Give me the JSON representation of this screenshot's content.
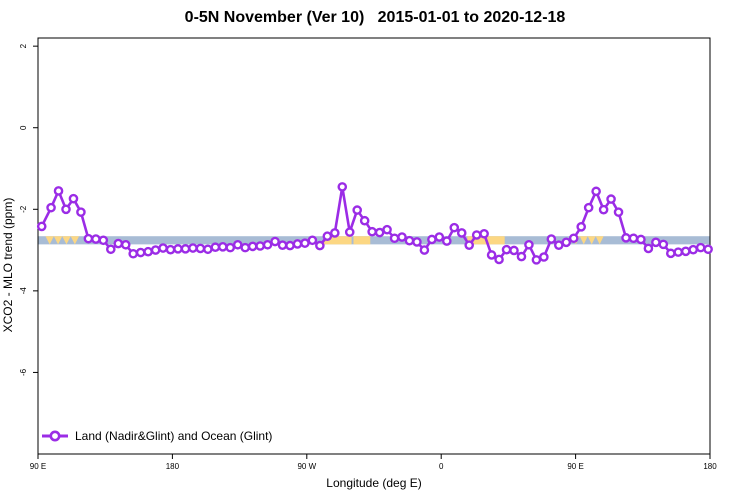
{
  "chart_data": {
    "type": "line",
    "title": "0-5N November (Ver 10)   2015-01-01 to 2020-12-18",
    "xlabel": "Longitude (deg E)",
    "ylabel": "XCO2 - MLO trend (ppm)",
    "x_ticks": [
      "90 E",
      "180",
      "90 W",
      "0",
      "90 E",
      "180"
    ],
    "y_ticks": [
      "2",
      "0",
      "-2",
      "-4",
      "-6"
    ],
    "y_tick_values": [
      2,
      0,
      -2,
      -4,
      -6
    ],
    "xlim": [
      90,
      450
    ],
    "ylim": [
      -8,
      2.2
    ],
    "grid": false,
    "legend_position": "bottom-left",
    "band": {
      "y_range": [
        -2.66,
        -2.86
      ],
      "ocean_color": "#a8bcd5",
      "land_color": "#fcd783"
    },
    "series": [
      {
        "name": "Land (Nadir&Glint) and Ocean (Glint)",
        "color": "#9b2ce6",
        "x": [
          92,
          97,
          101,
          105,
          109,
          113,
          117,
          121,
          125,
          129,
          133,
          137,
          141,
          145,
          149,
          153,
          157,
          161,
          165,
          169,
          173,
          177,
          181,
          185,
          189,
          193,
          197,
          201,
          205,
          209,
          213,
          217,
          221,
          225,
          229,
          233,
          237,
          241,
          245,
          249,
          253,
          257,
          261,
          265,
          269,
          273,
          277,
          281,
          285,
          289,
          293,
          297,
          301,
          305,
          309,
          313,
          317,
          321,
          325,
          329,
          333,
          337,
          341,
          345,
          349,
          353,
          357,
          361,
          365,
          369,
          373,
          377,
          381,
          385,
          389,
          393,
          397,
          401,
          405,
          409,
          413,
          417,
          421,
          425,
          429,
          433,
          437,
          441,
          445,
          449
        ],
        "y": [
          -2.42,
          -1.96,
          -1.55,
          -2.0,
          -1.74,
          -2.07,
          -2.72,
          -2.73,
          -2.76,
          -2.98,
          -2.84,
          -2.87,
          -3.09,
          -3.06,
          -3.04,
          -3.0,
          -2.95,
          -2.99,
          -2.97,
          -2.97,
          -2.95,
          -2.96,
          -2.98,
          -2.93,
          -2.92,
          -2.94,
          -2.87,
          -2.94,
          -2.91,
          -2.9,
          -2.87,
          -2.79,
          -2.88,
          -2.89,
          -2.85,
          -2.83,
          -2.76,
          -2.89,
          -2.66,
          -2.58,
          -1.45,
          -2.56,
          -2.02,
          -2.28,
          -2.55,
          -2.57,
          -2.5,
          -2.71,
          -2.68,
          -2.77,
          -2.8,
          -3.0,
          -2.74,
          -2.68,
          -2.78,
          -2.45,
          -2.58,
          -2.88,
          -2.63,
          -2.6,
          -3.12,
          -3.23,
          -2.99,
          -3.01,
          -3.16,
          -2.87,
          -3.24,
          -3.17,
          -2.73,
          -2.88,
          -2.81,
          -2.71,
          -2.43,
          -1.96,
          -1.56,
          -2.01,
          -1.75,
          -2.07,
          -2.7,
          -2.71,
          -2.74,
          -2.96,
          -2.81,
          -2.86,
          -3.08,
          -3.05,
          -3.03,
          -2.99,
          -2.94,
          -2.98
        ]
      }
    ]
  }
}
